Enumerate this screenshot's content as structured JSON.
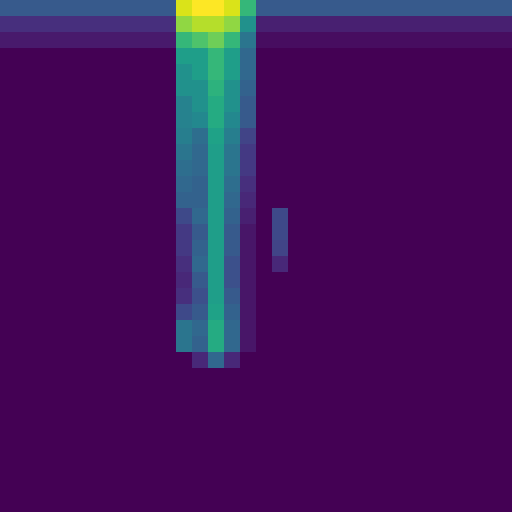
{
  "chart_data": {
    "type": "heatmap",
    "color": "viridis",
    "tick_labels": false,
    "cells": [
      [
        0.25,
        0.25,
        0.25,
        0.25,
        0.25,
        0.25,
        0.25,
        0.25,
        0.25,
        0.25,
        0.25,
        0.85,
        0.9,
        0.9,
        0.85,
        0.6,
        0.25,
        0.25,
        0.25,
        0.25,
        0.25,
        0.25,
        0.25,
        0.25,
        0.25,
        0.25,
        0.25,
        0.25,
        0.25,
        0.25,
        0.25,
        0.25
      ],
      [
        0.12,
        0.12,
        0.12,
        0.12,
        0.12,
        0.12,
        0.12,
        0.12,
        0.12,
        0.12,
        0.12,
        0.75,
        0.8,
        0.8,
        0.75,
        0.45,
        0.08,
        0.08,
        0.08,
        0.08,
        0.08,
        0.08,
        0.08,
        0.08,
        0.08,
        0.08,
        0.08,
        0.08,
        0.08,
        0.08,
        0.08,
        0.08
      ],
      [
        0.06,
        0.06,
        0.06,
        0.06,
        0.06,
        0.06,
        0.06,
        0.06,
        0.06,
        0.06,
        0.06,
        0.6,
        0.65,
        0.7,
        0.6,
        0.35,
        0.03,
        0.03,
        0.03,
        0.03,
        0.03,
        0.03,
        0.03,
        0.03,
        0.03,
        0.03,
        0.03,
        0.03,
        0.03,
        0.03,
        0.03,
        0.03
      ],
      [
        0,
        0,
        0,
        0,
        0,
        0,
        0,
        0,
        0,
        0,
        0,
        0.5,
        0.5,
        0.6,
        0.5,
        0.3,
        0,
        0,
        0,
        0,
        0,
        0,
        0,
        0,
        0,
        0,
        0,
        0,
        0,
        0,
        0,
        0
      ],
      [
        0,
        0,
        0,
        0,
        0,
        0,
        0,
        0,
        0,
        0,
        0,
        0.45,
        0.5,
        0.6,
        0.5,
        0.3,
        0,
        0,
        0,
        0,
        0,
        0,
        0,
        0,
        0,
        0,
        0,
        0,
        0,
        0,
        0,
        0
      ],
      [
        0,
        0,
        0,
        0,
        0,
        0,
        0,
        0,
        0,
        0,
        0,
        0.45,
        0.45,
        0.58,
        0.45,
        0.28,
        0,
        0,
        0,
        0,
        0,
        0,
        0,
        0,
        0,
        0,
        0,
        0,
        0,
        0,
        0,
        0
      ],
      [
        0,
        0,
        0,
        0,
        0,
        0,
        0,
        0,
        0,
        0,
        0,
        0.4,
        0.45,
        0.55,
        0.45,
        0.25,
        0,
        0,
        0,
        0,
        0,
        0,
        0,
        0,
        0,
        0,
        0,
        0,
        0,
        0,
        0,
        0
      ],
      [
        0,
        0,
        0,
        0,
        0,
        0,
        0,
        0,
        0,
        0,
        0,
        0.4,
        0.42,
        0.55,
        0.42,
        0.25,
        0,
        0,
        0,
        0,
        0,
        0,
        0,
        0,
        0,
        0,
        0,
        0,
        0,
        0,
        0,
        0
      ],
      [
        0,
        0,
        0,
        0,
        0,
        0,
        0,
        0,
        0,
        0,
        0,
        0.38,
        0.32,
        0.52,
        0.38,
        0.18,
        0,
        0,
        0,
        0,
        0,
        0,
        0,
        0,
        0,
        0,
        0,
        0,
        0,
        0,
        0,
        0
      ],
      [
        0,
        0,
        0,
        0,
        0,
        0,
        0,
        0,
        0,
        0,
        0,
        0.35,
        0.3,
        0.5,
        0.35,
        0.15,
        0,
        0,
        0,
        0,
        0,
        0,
        0,
        0,
        0,
        0,
        0,
        0,
        0,
        0,
        0,
        0
      ],
      [
        0,
        0,
        0,
        0,
        0,
        0,
        0,
        0,
        0,
        0,
        0,
        0.32,
        0.3,
        0.5,
        0.35,
        0.15,
        0,
        0,
        0,
        0,
        0,
        0,
        0,
        0,
        0,
        0,
        0,
        0,
        0,
        0,
        0,
        0
      ],
      [
        0,
        0,
        0,
        0,
        0,
        0,
        0,
        0,
        0,
        0,
        0,
        0.3,
        0.28,
        0.5,
        0.32,
        0.12,
        0,
        0,
        0,
        0,
        0,
        0,
        0,
        0,
        0,
        0,
        0,
        0,
        0,
        0,
        0,
        0
      ],
      [
        0,
        0,
        0,
        0,
        0,
        0,
        0,
        0,
        0,
        0,
        0,
        0.28,
        0.28,
        0.5,
        0.3,
        0.1,
        0,
        0,
        0,
        0,
        0,
        0,
        0,
        0,
        0,
        0,
        0,
        0,
        0,
        0,
        0,
        0
      ],
      [
        0,
        0,
        0,
        0,
        0,
        0,
        0,
        0,
        0,
        0,
        0,
        0.2,
        0.3,
        0.5,
        0.28,
        0.08,
        0,
        0.2,
        0,
        0,
        0,
        0,
        0,
        0,
        0,
        0,
        0,
        0,
        0,
        0,
        0,
        0
      ],
      [
        0,
        0,
        0,
        0,
        0,
        0,
        0,
        0,
        0,
        0,
        0,
        0.15,
        0.25,
        0.5,
        0.25,
        0.05,
        0,
        0.2,
        0,
        0,
        0,
        0,
        0,
        0,
        0,
        0,
        0,
        0,
        0,
        0,
        0,
        0
      ],
      [
        0,
        0,
        0,
        0,
        0,
        0,
        0,
        0,
        0,
        0,
        0,
        0.15,
        0.28,
        0.5,
        0.25,
        0.05,
        0,
        0.18,
        0,
        0,
        0,
        0,
        0,
        0,
        0,
        0,
        0,
        0,
        0,
        0,
        0,
        0
      ],
      [
        0,
        0,
        0,
        0,
        0,
        0,
        0,
        0,
        0,
        0,
        0,
        0.12,
        0.3,
        0.5,
        0.22,
        0.05,
        0,
        0.1,
        0,
        0,
        0,
        0,
        0,
        0,
        0,
        0,
        0,
        0,
        0,
        0,
        0,
        0
      ],
      [
        0,
        0,
        0,
        0,
        0,
        0,
        0,
        0,
        0,
        0,
        0,
        0.1,
        0.25,
        0.5,
        0.22,
        0.05,
        0,
        0,
        0,
        0,
        0,
        0,
        0,
        0,
        0,
        0,
        0,
        0,
        0,
        0,
        0,
        0
      ],
      [
        0,
        0,
        0,
        0,
        0,
        0,
        0,
        0,
        0,
        0,
        0,
        0.12,
        0.22,
        0.5,
        0.25,
        0.05,
        0,
        0,
        0,
        0,
        0,
        0,
        0,
        0,
        0,
        0,
        0,
        0,
        0,
        0,
        0,
        0
      ],
      [
        0,
        0,
        0,
        0,
        0,
        0,
        0,
        0,
        0,
        0,
        0,
        0.2,
        0.25,
        0.52,
        0.28,
        0.05,
        0,
        0,
        0,
        0,
        0,
        0,
        0,
        0,
        0,
        0,
        0,
        0,
        0,
        0,
        0,
        0
      ],
      [
        0,
        0,
        0,
        0,
        0,
        0,
        0,
        0,
        0,
        0,
        0,
        0.35,
        0.3,
        0.55,
        0.3,
        0.05,
        0,
        0,
        0,
        0,
        0,
        0,
        0,
        0,
        0,
        0,
        0,
        0,
        0,
        0,
        0,
        0
      ],
      [
        0,
        0,
        0,
        0,
        0,
        0,
        0,
        0,
        0,
        0,
        0,
        0.35,
        0.28,
        0.55,
        0.3,
        0.05,
        0,
        0,
        0,
        0,
        0,
        0,
        0,
        0,
        0,
        0,
        0,
        0,
        0,
        0,
        0,
        0
      ],
      [
        0,
        0,
        0,
        0,
        0,
        0,
        0,
        0,
        0,
        0,
        0,
        0,
        0.1,
        0.3,
        0.1,
        0,
        0,
        0,
        0,
        0,
        0,
        0,
        0,
        0,
        0,
        0,
        0,
        0,
        0,
        0,
        0,
        0
      ],
      [
        0,
        0,
        0,
        0,
        0,
        0,
        0,
        0,
        0,
        0,
        0,
        0,
        0,
        0,
        0,
        0,
        0,
        0,
        0,
        0,
        0,
        0,
        0,
        0,
        0,
        0,
        0,
        0,
        0,
        0,
        0,
        0
      ],
      [
        0,
        0,
        0,
        0,
        0,
        0,
        0,
        0,
        0,
        0,
        0,
        0,
        0,
        0,
        0,
        0,
        0,
        0,
        0,
        0,
        0,
        0,
        0,
        0,
        0,
        0,
        0,
        0,
        0,
        0,
        0,
        0
      ],
      [
        0,
        0,
        0,
        0,
        0,
        0,
        0,
        0,
        0,
        0,
        0,
        0,
        0,
        0,
        0,
        0,
        0,
        0,
        0,
        0,
        0,
        0,
        0,
        0,
        0,
        0,
        0,
        0,
        0,
        0,
        0,
        0
      ],
      [
        0,
        0,
        0,
        0,
        0,
        0,
        0,
        0,
        0,
        0,
        0,
        0,
        0,
        0,
        0,
        0,
        0,
        0,
        0,
        0,
        0,
        0,
        0,
        0,
        0,
        0,
        0,
        0,
        0,
        0,
        0,
        0
      ],
      [
        0,
        0,
        0,
        0,
        0,
        0,
        0,
        0,
        0,
        0,
        0,
        0,
        0,
        0,
        0,
        0,
        0,
        0,
        0,
        0,
        0,
        0,
        0,
        0,
        0,
        0,
        0,
        0,
        0,
        0,
        0,
        0
      ],
      [
        0,
        0,
        0,
        0,
        0,
        0,
        0,
        0,
        0,
        0,
        0,
        0,
        0,
        0,
        0,
        0,
        0,
        0,
        0,
        0,
        0,
        0,
        0,
        0,
        0,
        0,
        0,
        0,
        0,
        0,
        0,
        0
      ],
      [
        0,
        0,
        0,
        0,
        0,
        0,
        0,
        0,
        0,
        0,
        0,
        0,
        0,
        0,
        0,
        0,
        0,
        0,
        0,
        0,
        0,
        0,
        0,
        0,
        0,
        0,
        0,
        0,
        0,
        0,
        0,
        0
      ],
      [
        0,
        0,
        0,
        0,
        0,
        0,
        0,
        0,
        0,
        0,
        0,
        0,
        0,
        0,
        0,
        0,
        0,
        0,
        0,
        0,
        0,
        0,
        0,
        0,
        0,
        0,
        0,
        0,
        0,
        0,
        0,
        0
      ],
      [
        0,
        0,
        0,
        0,
        0,
        0,
        0,
        0,
        0,
        0,
        0,
        0,
        0,
        0,
        0,
        0,
        0,
        0,
        0,
        0,
        0,
        0,
        0,
        0,
        0,
        0,
        0,
        0,
        0,
        0,
        0,
        0
      ]
    ]
  }
}
